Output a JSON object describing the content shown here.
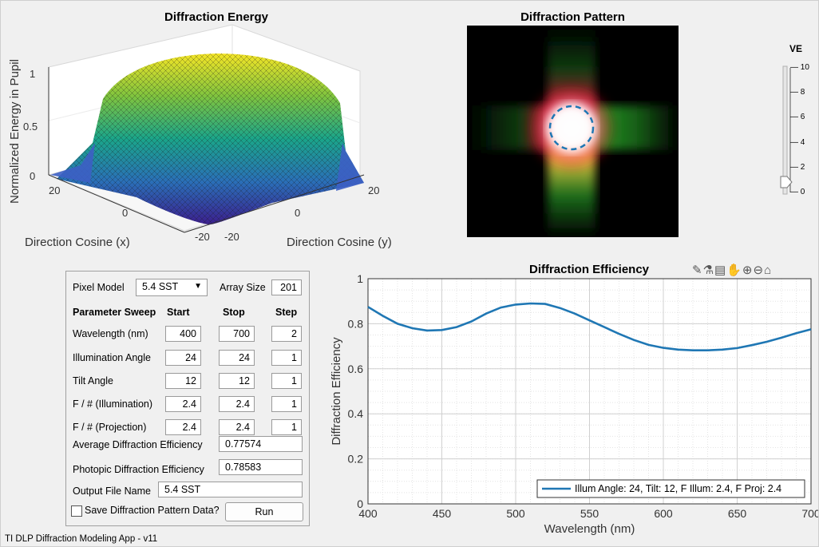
{
  "app": {
    "footer": "TI DLP Diffraction Modeling App - v11"
  },
  "energy_plot": {
    "title": "Diffraction Energy",
    "zlabel": "Normalized Energy in Pupil",
    "xlabel": "Direction Cosine (x)",
    "ylabel": "Direction Cosine (y)",
    "z_ticks": [
      "0",
      "0.5",
      "1"
    ],
    "x_ticks": [
      "20",
      "0",
      "-20"
    ],
    "y_ticks": [
      "-20",
      "0",
      "20"
    ]
  },
  "pattern": {
    "title": "Diffraction Pattern"
  },
  "ve_slider": {
    "label": "VE",
    "ticks": [
      "10",
      "8",
      "6",
      "4",
      "2",
      "0"
    ],
    "value": 0
  },
  "controls": {
    "pixel_model_label": "Pixel  Model",
    "pixel_model_value": "5.4 SST",
    "array_size_label": "Array Size",
    "array_size_value": "201",
    "sweep_headers": [
      "Parameter Sweep",
      "Start",
      "Stop",
      "Step"
    ],
    "rows": [
      {
        "label": "Wavelength (nm)",
        "start": "400",
        "stop": "700",
        "step": "2"
      },
      {
        "label": "Illumination Angle",
        "start": "24",
        "stop": "24",
        "step": "1"
      },
      {
        "label": "Tilt Angle",
        "start": "12",
        "stop": "12",
        "step": "1"
      },
      {
        "label": "F / # (Illumination)",
        "start": "2.4",
        "stop": "2.4",
        "step": "1"
      },
      {
        "label": "F / # (Projection)",
        "start": "2.4",
        "stop": "2.4",
        "step": "1"
      }
    ],
    "avg_eff_label": "Average Diffraction Efficiency",
    "avg_eff_value": "0.77574",
    "photopic_label": "Photopic Diffraction Efficiency",
    "photopic_value": "0.78583",
    "output_label": "Output File Name",
    "output_value": "5.4 SST",
    "save_label": "Save Diffraction Pattern Data?",
    "run_label": "Run"
  },
  "chart_data": {
    "type": "line",
    "title": "Diffraction Efficiency",
    "xlabel": "Wavelength (nm)",
    "ylabel": "Diffraction Efficiency",
    "xlim": [
      400,
      700
    ],
    "ylim": [
      0,
      1
    ],
    "x_ticks": [
      400,
      450,
      500,
      550,
      600,
      650,
      700
    ],
    "y_ticks": [
      0,
      0.2,
      0.4,
      0.6,
      0.8,
      1
    ],
    "grid": true,
    "legend_position": "bottom-right",
    "series": [
      {
        "name": "Illum Angle: 24, Tilt: 12, F Illum: 2.4, F Proj: 2.4",
        "color": "#1f77b4",
        "x": [
          400,
          410,
          420,
          430,
          440,
          450,
          460,
          470,
          480,
          490,
          500,
          510,
          520,
          530,
          540,
          550,
          560,
          570,
          580,
          590,
          600,
          610,
          620,
          630,
          640,
          650,
          660,
          670,
          680,
          690,
          700
        ],
        "y": [
          0.875,
          0.835,
          0.8,
          0.78,
          0.77,
          0.772,
          0.785,
          0.81,
          0.845,
          0.872,
          0.885,
          0.89,
          0.888,
          0.87,
          0.845,
          0.815,
          0.785,
          0.755,
          0.728,
          0.706,
          0.693,
          0.685,
          0.682,
          0.682,
          0.685,
          0.692,
          0.705,
          0.72,
          0.738,
          0.758,
          0.775
        ]
      }
    ]
  }
}
